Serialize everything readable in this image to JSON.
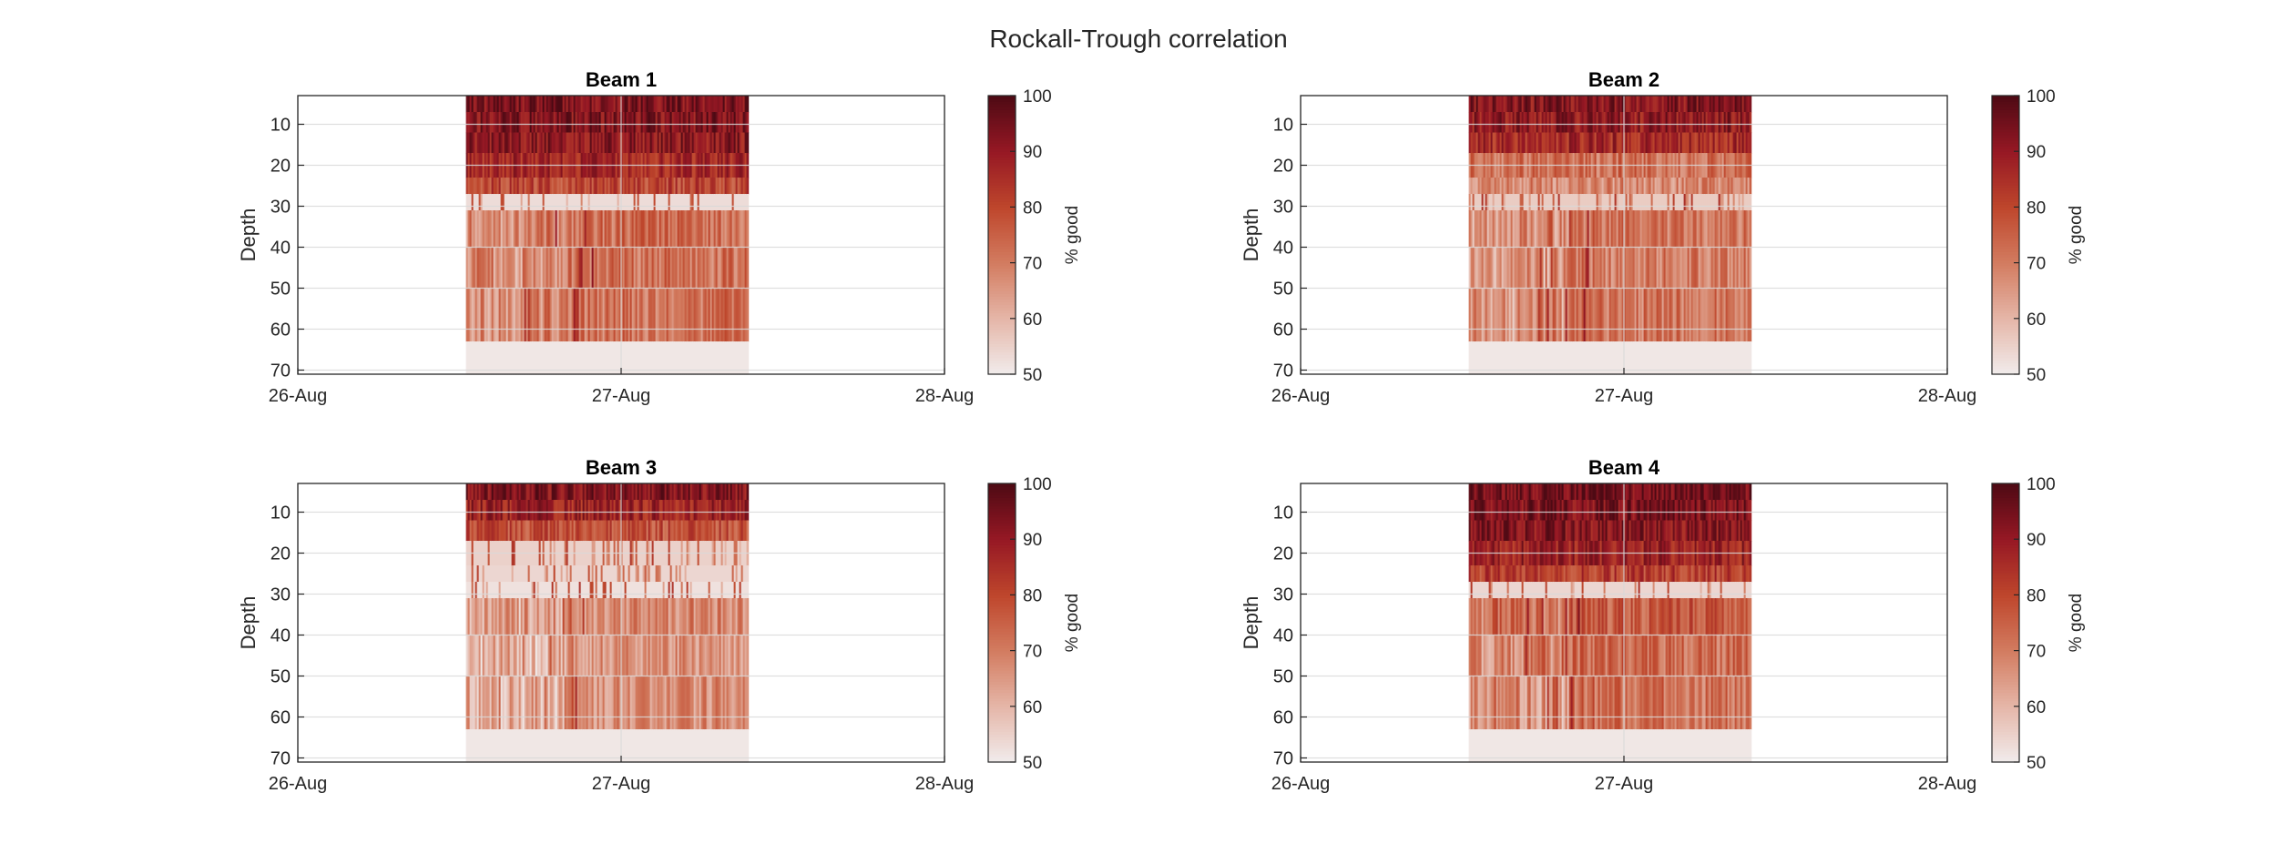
{
  "figure": {
    "title": "Rockall-Trough correlation"
  },
  "chart_data": [
    {
      "type": "heatmap",
      "title": "Beam 1",
      "xlabel": "",
      "ylabel": "Depth",
      "x_ticks": [
        "26-Aug",
        "27-Aug",
        "28-Aug"
      ],
      "x_range_days": [
        0,
        2
      ],
      "y_ticks": [
        10,
        20,
        30,
        40,
        50,
        60,
        70
      ],
      "ylim": [
        3,
        71
      ],
      "y_reversed": true,
      "grid": true,
      "data_time_range_days": [
        0.52,
        1.39
      ],
      "colorbar": {
        "label": "% good",
        "ticks": [
          50,
          60,
          70,
          80,
          90,
          100
        ],
        "range": [
          50,
          100
        ],
        "colormap": "white-to-dark-red"
      },
      "depth_profile": [
        {
          "depth_range": [
            3,
            7
          ],
          "value": 94
        },
        {
          "depth_range": [
            7,
            12
          ],
          "value": 93
        },
        {
          "depth_range": [
            12,
            17
          ],
          "value": 91
        },
        {
          "depth_range": [
            17,
            23
          ],
          "value": 86
        },
        {
          "depth_range": [
            23,
            27
          ],
          "value": 80
        },
        {
          "depth_range": [
            27,
            31
          ],
          "value": 53
        },
        {
          "depth_range": [
            31,
            40
          ],
          "value": 73
        },
        {
          "depth_range": [
            40,
            50
          ],
          "value": 72
        },
        {
          "depth_range": [
            50,
            63
          ],
          "value": 72
        },
        {
          "depth_range": [
            63,
            71
          ],
          "value": 51
        }
      ]
    },
    {
      "type": "heatmap",
      "title": "Beam 2",
      "xlabel": "",
      "ylabel": "Depth",
      "x_ticks": [
        "26-Aug",
        "27-Aug",
        "28-Aug"
      ],
      "x_range_days": [
        0,
        2
      ],
      "y_ticks": [
        10,
        20,
        30,
        40,
        50,
        60,
        70
      ],
      "ylim": [
        3,
        71
      ],
      "y_reversed": true,
      "grid": true,
      "data_time_range_days": [
        0.52,
        1.39
      ],
      "colorbar": {
        "label": "% good",
        "ticks": [
          50,
          60,
          70,
          80,
          90,
          100
        ],
        "range": [
          50,
          100
        ],
        "colormap": "white-to-dark-red"
      },
      "depth_profile": [
        {
          "depth_range": [
            3,
            7
          ],
          "value": 92
        },
        {
          "depth_range": [
            7,
            12
          ],
          "value": 90
        },
        {
          "depth_range": [
            12,
            17
          ],
          "value": 86
        },
        {
          "depth_range": [
            17,
            23
          ],
          "value": 72
        },
        {
          "depth_range": [
            23,
            27
          ],
          "value": 68
        },
        {
          "depth_range": [
            27,
            31
          ],
          "value": 56
        },
        {
          "depth_range": [
            31,
            40
          ],
          "value": 71
        },
        {
          "depth_range": [
            40,
            50
          ],
          "value": 70
        },
        {
          "depth_range": [
            50,
            63
          ],
          "value": 71
        },
        {
          "depth_range": [
            63,
            71
          ],
          "value": 51
        }
      ]
    },
    {
      "type": "heatmap",
      "title": "Beam 3",
      "xlabel": "",
      "ylabel": "Depth",
      "x_ticks": [
        "26-Aug",
        "27-Aug",
        "28-Aug"
      ],
      "x_range_days": [
        0,
        2
      ],
      "y_ticks": [
        10,
        20,
        30,
        40,
        50,
        60,
        70
      ],
      "ylim": [
        3,
        71
      ],
      "y_reversed": true,
      "grid": true,
      "data_time_range_days": [
        0.52,
        1.39
      ],
      "colorbar": {
        "label": "% good",
        "ticks": [
          50,
          60,
          70,
          80,
          90,
          100
        ],
        "range": [
          50,
          100
        ],
        "colormap": "white-to-dark-red"
      },
      "depth_profile": [
        {
          "depth_range": [
            3,
            7
          ],
          "value": 93
        },
        {
          "depth_range": [
            7,
            12
          ],
          "value": 88
        },
        {
          "depth_range": [
            12,
            17
          ],
          "value": 78
        },
        {
          "depth_range": [
            17,
            23
          ],
          "value": 55
        },
        {
          "depth_range": [
            23,
            27
          ],
          "value": 54
        },
        {
          "depth_range": [
            27,
            31
          ],
          "value": 52
        },
        {
          "depth_range": [
            31,
            40
          ],
          "value": 68
        },
        {
          "depth_range": [
            40,
            50
          ],
          "value": 66
        },
        {
          "depth_range": [
            50,
            63
          ],
          "value": 67
        },
        {
          "depth_range": [
            63,
            71
          ],
          "value": 51
        }
      ]
    },
    {
      "type": "heatmap",
      "title": "Beam 4",
      "xlabel": "",
      "ylabel": "Depth",
      "x_ticks": [
        "26-Aug",
        "27-Aug",
        "28-Aug"
      ],
      "x_range_days": [
        0,
        2
      ],
      "y_ticks": [
        10,
        20,
        30,
        40,
        50,
        60,
        70
      ],
      "ylim": [
        3,
        71
      ],
      "y_reversed": true,
      "grid": true,
      "data_time_range_days": [
        0.52,
        1.39
      ],
      "colorbar": {
        "label": "% good",
        "ticks": [
          50,
          60,
          70,
          80,
          90,
          100
        ],
        "range": [
          50,
          100
        ],
        "colormap": "white-to-dark-red"
      },
      "depth_profile": [
        {
          "depth_range": [
            3,
            7
          ],
          "value": 95
        },
        {
          "depth_range": [
            7,
            12
          ],
          "value": 94
        },
        {
          "depth_range": [
            12,
            17
          ],
          "value": 92
        },
        {
          "depth_range": [
            17,
            23
          ],
          "value": 88
        },
        {
          "depth_range": [
            23,
            27
          ],
          "value": 82
        },
        {
          "depth_range": [
            27,
            31
          ],
          "value": 54
        },
        {
          "depth_range": [
            31,
            40
          ],
          "value": 76
        },
        {
          "depth_range": [
            40,
            50
          ],
          "value": 73
        },
        {
          "depth_range": [
            50,
            63
          ],
          "value": 72
        },
        {
          "depth_range": [
            63,
            71
          ],
          "value": 51
        }
      ]
    }
  ]
}
